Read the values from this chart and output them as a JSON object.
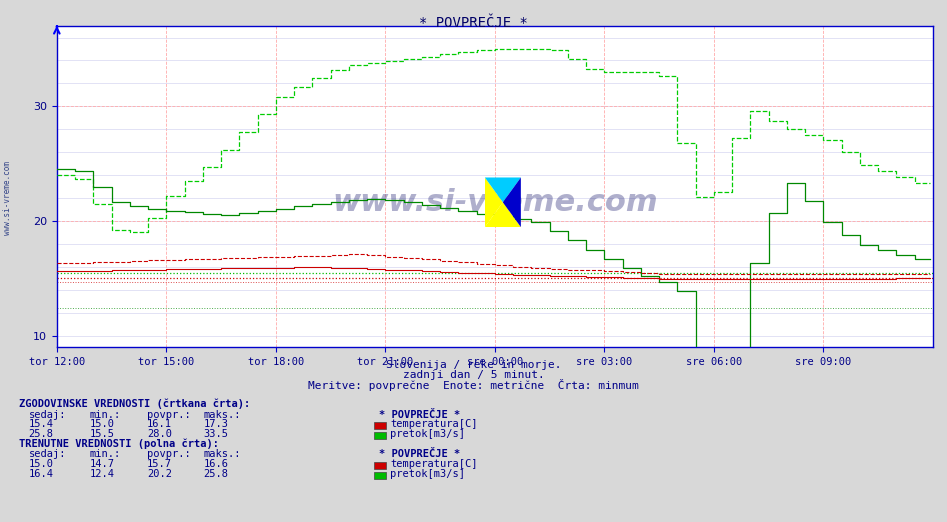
{
  "title": "* POVPREČJE *",
  "subtitle1": "Slovenija / reke in morje.",
  "subtitle2": "zadnji dan / 5 minut.",
  "subtitle3": "Meritve: povprečne  Enote: metrične  Črta: minmum",
  "xlabel_ticks": [
    "tor 12:00",
    "tor 15:00",
    "tor 18:00",
    "tor 21:00",
    "sre 00:00",
    "sre 03:00",
    "sre 06:00",
    "sre 09:00"
  ],
  "ylim": [
    9,
    37
  ],
  "xlim": [
    0,
    288
  ],
  "fig_bg": "#d8d8d8",
  "plot_bg": "#ffffff",
  "red_hist_color": "#cc0000",
  "green_hist_color": "#00cc00",
  "red_curr_color": "#cc0000",
  "green_curr_color": "#008800",
  "title_color": "#000066",
  "axis_color": "#0000cc",
  "text_color": "#000088",
  "grid_v_color": "#ff9999",
  "grid_h_color": "#ddddff",
  "hist_temp_sedaj": 15.4,
  "hist_temp_min": 15.0,
  "hist_temp_povpr": 16.1,
  "hist_temp_maks": 17.3,
  "hist_flow_sedaj": 25.8,
  "hist_flow_min": 15.5,
  "hist_flow_povpr": 28.0,
  "hist_flow_maks": 33.5,
  "curr_temp_sedaj": 15.0,
  "curr_temp_min": 14.7,
  "curr_temp_povpr": 15.7,
  "curr_temp_maks": 16.6,
  "curr_flow_sedaj": 16.4,
  "curr_flow_min": 12.4,
  "curr_flow_povpr": 20.2,
  "curr_flow_maks": 25.8,
  "n_points": 288
}
